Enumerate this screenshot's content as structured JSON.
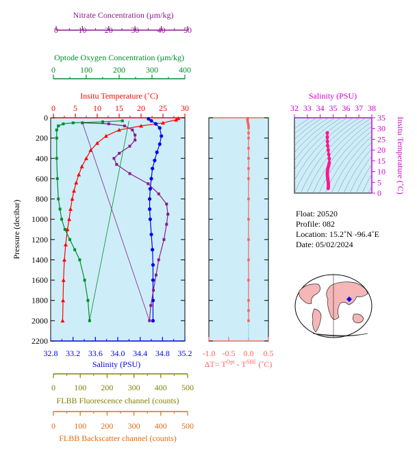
{
  "axes": {
    "nitrate": {
      "title": "Nitrate Concentration (µm/kg)",
      "ticks": [
        "0",
        "10",
        "20",
        "30",
        "40",
        "50"
      ],
      "color": "#8b1a8b"
    },
    "oxygen": {
      "title": "Optode Oxygen Concentration (µm/kg)",
      "ticks": [
        "0",
        "100",
        "200",
        "300",
        "400"
      ],
      "color": "#008c2a"
    },
    "temperature": {
      "title": "Insitu Temperature (˚C)",
      "ticks": [
        "0",
        "5",
        "10",
        "15",
        "20",
        "25",
        "30"
      ],
      "color": "#ff0000"
    },
    "salinity": {
      "title": "Salinity (PSU)",
      "ticks": [
        "32.8",
        "33.2",
        "33.6",
        "34.0",
        "34.4",
        "34.8",
        "35.2"
      ],
      "color": "#0000ee"
    },
    "pressure": {
      "title": "Pressure (decibar)",
      "ticks": [
        "0",
        "200",
        "400",
        "600",
        "800",
        "1000",
        "1200",
        "1400",
        "1600",
        "1800",
        "2000",
        "2200"
      ],
      "color": "#000000"
    },
    "delta_t": {
      "title_prefix": "ΔT= T",
      "sup1": "Opt",
      "mid": " - T",
      "sup2": "SBE",
      "suffix": " (˚C)",
      "ticks": [
        "-1.0",
        "-0.5",
        "0.0",
        "0.5"
      ],
      "color": "#ff6060"
    },
    "fluorescence": {
      "title": "FLBB Fluorescence channel (counts)",
      "ticks": [
        "0",
        "100",
        "200",
        "300",
        "400",
        "500"
      ],
      "color": "#808000"
    },
    "backscatter": {
      "title": "FLBB Backscatter channel (counts)",
      "ticks": [
        "0",
        "100",
        "200",
        "300",
        "400",
        "500"
      ],
      "color": "#e06a10"
    },
    "ts_salinity": {
      "title": "Salinity (PSU)",
      "ticks": [
        "32",
        "33",
        "34",
        "35",
        "36",
        "37",
        "38"
      ],
      "color": "#d000d0"
    },
    "ts_temperature": {
      "title": "Insitu Temperature (˚C)",
      "ticks": [
        "0",
        "5",
        "10",
        "15",
        "20",
        "25",
        "30",
        "35"
      ],
      "color": "#d000d0"
    }
  },
  "info": {
    "float": "Float:  20520",
    "profile": "Profile:  082",
    "location": "Location:  15.2˚N  -96.4˚E",
    "date": "Date:  05/02/2024"
  },
  "colors": {
    "panel_bg": "#cdeef8",
    "temperature": "#ff0000",
    "salinity": "#0000ee",
    "nitrate": "#8b1a8b",
    "oxygen": "#008c2a",
    "delta_t": "#ff6060",
    "ts": "#ff1493",
    "map_land": "#f4b6b6"
  },
  "chart_data": [
    {
      "type": "line",
      "panel": "main profile",
      "y_axis": "Pressure (decibar)",
      "ylim": [
        2200,
        0
      ],
      "series": [
        {
          "name": "Insitu Temperature",
          "xlim": [
            0,
            30
          ],
          "x": [
            28.5,
            28,
            25,
            20,
            15,
            12,
            10,
            8.5,
            7.5,
            6.5,
            5.8,
            5.2,
            4.7,
            4.3,
            3.9,
            3.6,
            3.2,
            2.8,
            2.5,
            2.3,
            2.2,
            2.1
          ],
          "y": [
            5,
            20,
            50,
            80,
            120,
            180,
            250,
            320,
            400,
            480,
            560,
            640,
            720,
            800,
            900,
            1000,
            1100,
            1250,
            1400,
            1600,
            1800,
            2000
          ]
        },
        {
          "name": "Salinity",
          "xlim": [
            32.8,
            35.2
          ],
          "x": [
            34.55,
            34.6,
            34.68,
            34.75,
            34.78,
            34.75,
            34.7,
            34.66,
            34.62,
            34.6,
            34.58,
            34.57,
            34.57,
            34.58,
            34.6,
            34.62,
            34.63,
            34.63,
            34.63,
            34.63
          ],
          "y": [
            10,
            30,
            60,
            100,
            180,
            260,
            340,
            420,
            500,
            600,
            700,
            800,
            900,
            1000,
            1150,
            1300,
            1450,
            1600,
            1800,
            2000
          ]
        },
        {
          "name": "Nitrate",
          "xlim": [
            0,
            50
          ],
          "x": [
            10,
            20,
            26,
            29,
            30,
            30,
            28,
            24,
            22,
            23,
            28,
            35,
            39,
            42,
            42.5,
            42,
            41,
            39,
            38,
            37,
            36,
            35.5
          ],
          "y": [
            50,
            60,
            80,
            120,
            170,
            220,
            280,
            350,
            400,
            460,
            550,
            650,
            750,
            850,
            950,
            1050,
            1200,
            1400,
            1550,
            1700,
            1850,
            2000
          ]
        },
        {
          "name": "Optode Oxygen",
          "xlim": [
            0,
            400
          ],
          "x": [
            210,
            150,
            60,
            30,
            15,
            10,
            10,
            10,
            12,
            15,
            20,
            25,
            35,
            50,
            65,
            80,
            95,
            105,
            110
          ],
          "y": [
            30,
            40,
            50,
            60,
            80,
            120,
            200,
            400,
            600,
            800,
            900,
            1000,
            1100,
            1200,
            1300,
            1400,
            1600,
            1800,
            2000
          ]
        }
      ]
    },
    {
      "type": "line",
      "panel": "delta T",
      "xlim": [
        -1.0,
        0.5
      ],
      "ylim": [
        2200,
        0
      ],
      "series": [
        {
          "name": "ΔT",
          "x": [
            -0.02,
            -0.03,
            -0.02,
            -0.01,
            0,
            0,
            0,
            0,
            0,
            0,
            0,
            0,
            0,
            0,
            0,
            0,
            0,
            0,
            0,
            0
          ],
          "y": [
            5,
            20,
            40,
            60,
            80,
            100,
            150,
            200,
            300,
            400,
            500,
            600,
            800,
            1000,
            1200,
            1400,
            1600,
            1800,
            1900,
            2000
          ]
        }
      ]
    },
    {
      "type": "scatter",
      "panel": "T-S diagram",
      "xlim": [
        32,
        38
      ],
      "ylim": [
        0,
        35
      ],
      "series": [
        {
          "name": "T-S",
          "x": [
            34.62,
            34.63,
            34.63,
            34.62,
            34.6,
            34.58,
            34.56,
            34.55,
            34.56,
            34.58,
            34.62,
            34.66,
            34.7,
            34.7,
            34.66,
            34.62,
            34.58,
            34.56,
            34.55,
            34.55
          ],
          "y": [
            2.2,
            3,
            4,
            5,
            6,
            7,
            8,
            9,
            10,
            11,
            12,
            13,
            14,
            16,
            18,
            20,
            22,
            24,
            26,
            28
          ]
        }
      ]
    }
  ]
}
